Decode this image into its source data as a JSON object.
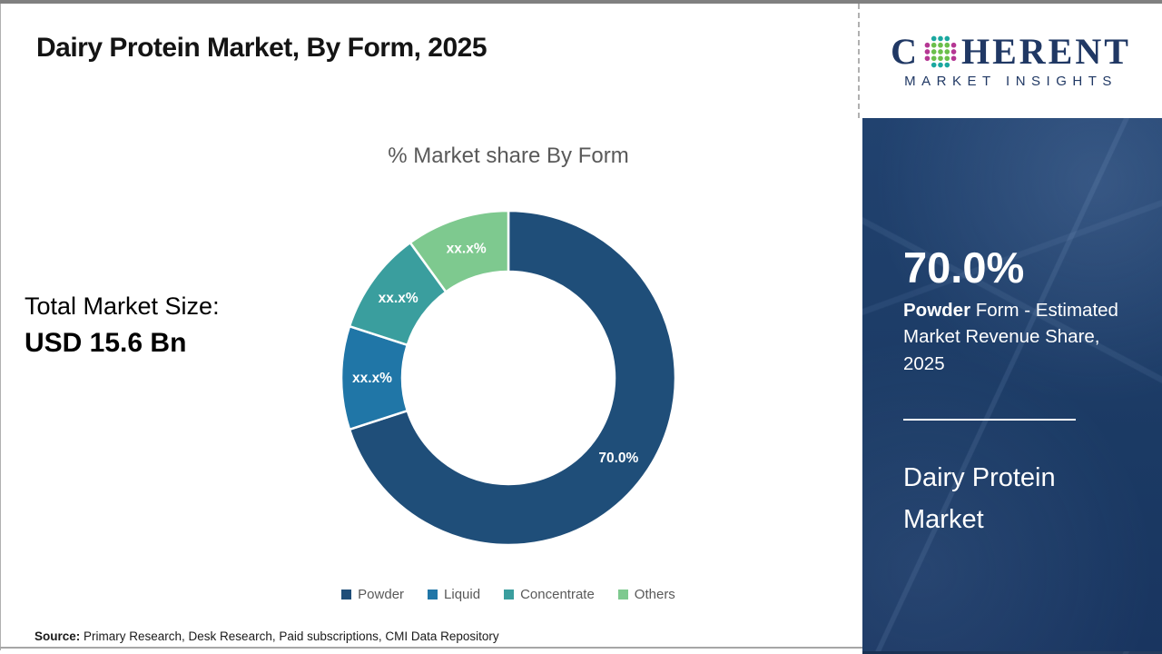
{
  "page": {
    "title": "Dairy Protein Market, By Form, 2025",
    "source_label": "Source:",
    "source_text": " Primary Research, Desk Research, Paid subscriptions, CMI Data Repository"
  },
  "left_panel": {
    "total_label": "Total Market Size:",
    "total_value": "USD 15.6 Bn"
  },
  "chart_data": {
    "type": "pie",
    "subtype": "donut",
    "title": "% Market share By Form",
    "categories": [
      "Powder",
      "Liquid",
      "Concentrate",
      "Others"
    ],
    "values": [
      70.0,
      10.0,
      10.0,
      10.0
    ],
    "slice_labels": [
      "70.0%",
      "xx.x%",
      "xx.x%",
      "xx.x%"
    ],
    "colors": [
      "#1F4E79",
      "#2076A7",
      "#3A9E9E",
      "#7EC98F"
    ],
    "legend_position": "bottom",
    "label_color": "#ffffff",
    "start_angle_deg": 0,
    "direction": "clockwise"
  },
  "sidebar": {
    "stat_value": "70.0%",
    "stat_desc_bold": " Powder",
    "stat_desc_rest": " Form - Estimated Market Revenue Share, 2025",
    "market_name": "Dairy Protein Market",
    "bg_color": "#1C3C68",
    "text_color": "#FFFFFF"
  },
  "logo": {
    "brand_first_letter": "C",
    "brand_rest": "HERENT",
    "subtitle": "MARKET INSIGHTS",
    "color": "#203864",
    "globe_dot_colors": {
      "teal": "#1BA8A0",
      "green": "#6ABF4B",
      "magenta": "#B53793"
    }
  }
}
